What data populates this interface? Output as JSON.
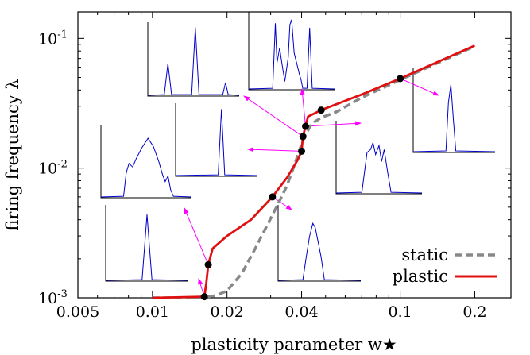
{
  "chart_data": {
    "type": "line",
    "xlabel": "plasticity parameter w★",
    "ylabel": "firing frequency λ",
    "xscale": "log",
    "yscale": "log",
    "xlim": [
      0.005,
      0.28
    ],
    "ylim": [
      0.001,
      0.16
    ],
    "x_ticks": [
      {
        "value": 0.005,
        "label": "0.005"
      },
      {
        "value": 0.01,
        "label": "0.01"
      },
      {
        "value": 0.02,
        "label": "0.02"
      },
      {
        "value": 0.04,
        "label": "0.04"
      },
      {
        "value": 0.1,
        "label": "0.1"
      },
      {
        "value": 0.2,
        "label": "0.2"
      }
    ],
    "y_ticks": [
      {
        "value": 0.001,
        "base": "10",
        "exp": "-3"
      },
      {
        "value": 0.01,
        "base": "10",
        "exp": "-2"
      },
      {
        "value": 0.1,
        "base": "10",
        "exp": "-1"
      }
    ],
    "grid": false,
    "legend_position": "bottom-right",
    "series": [
      {
        "name": "static",
        "color": "#888888",
        "style": "dashed",
        "x": [
          0.01,
          0.013,
          0.016,
          0.018,
          0.02,
          0.023,
          0.026,
          0.029,
          0.032,
          0.035,
          0.038,
          0.041,
          0.044,
          0.048,
          0.055,
          0.07,
          0.1,
          0.2
        ],
        "y": [
          0.001,
          0.001,
          0.00101,
          0.00104,
          0.00113,
          0.00155,
          0.0024,
          0.0036,
          0.0052,
          0.0074,
          0.0115,
          0.0175,
          0.022,
          0.0245,
          0.027,
          0.035,
          0.048,
          0.087
        ]
      },
      {
        "name": "plastic",
        "color": "#e01010",
        "style": "solid",
        "x": [
          0.01,
          0.0162,
          0.0165,
          0.0168,
          0.0175,
          0.02,
          0.025,
          0.0305,
          0.035,
          0.0385,
          0.04,
          0.0405,
          0.0415,
          0.0425,
          0.048,
          0.07,
          0.1,
          0.2
        ],
        "y": [
          0.001,
          0.00102,
          0.0013,
          0.0018,
          0.0024,
          0.003,
          0.004,
          0.006,
          0.0085,
          0.0115,
          0.0135,
          0.0175,
          0.021,
          0.025,
          0.028,
          0.037,
          0.049,
          0.088
        ]
      }
    ],
    "markers": [
      {
        "x": 0.0162,
        "y": 0.00102
      },
      {
        "x": 0.0168,
        "y": 0.0018
      },
      {
        "x": 0.0305,
        "y": 0.006
      },
      {
        "x": 0.04,
        "y": 0.0135
      },
      {
        "x": 0.0405,
        "y": 0.0175
      },
      {
        "x": 0.0415,
        "y": 0.021
      },
      {
        "x": 0.048,
        "y": 0.028
      },
      {
        "x": 0.1,
        "y": 0.049
      }
    ],
    "insets": [
      {
        "id": "a",
        "shape": [
          [
            0,
            0
          ],
          [
            0.18,
            0.01
          ],
          [
            0.22,
            0.45
          ],
          [
            0.26,
            0.01
          ],
          [
            0.48,
            0.01
          ],
          [
            0.52,
            0.96
          ],
          [
            0.56,
            0.01
          ],
          [
            0.82,
            0.01
          ],
          [
            0.85,
            0.18
          ],
          [
            0.88,
            0.01
          ],
          [
            1,
            0
          ]
        ]
      },
      {
        "id": "b",
        "shape": [
          [
            0,
            0
          ],
          [
            0.28,
            0.01
          ],
          [
            0.31,
            0.88
          ],
          [
            0.33,
            0.35
          ],
          [
            0.36,
            0.55
          ],
          [
            0.39,
            0.32
          ],
          [
            0.42,
            0.1
          ],
          [
            0.46,
            0.42
          ],
          [
            0.48,
            0.86
          ],
          [
            0.5,
            0.93
          ],
          [
            0.53,
            0.48
          ],
          [
            0.56,
            0.34
          ],
          [
            0.59,
            0.2
          ],
          [
            0.61,
            0.12
          ],
          [
            0.63,
            0.01
          ],
          [
            0.68,
            0.01
          ],
          [
            0.71,
            0.82
          ],
          [
            0.74,
            0.01
          ],
          [
            1,
            0
          ]
        ]
      },
      {
        "id": "c",
        "shape": [
          [
            0,
            0
          ],
          [
            0.52,
            0.01
          ],
          [
            0.56,
            0.95
          ],
          [
            0.6,
            0.01
          ],
          [
            1,
            0
          ]
        ]
      },
      {
        "id": "d",
        "shape": [
          [
            0,
            0
          ],
          [
            0.25,
            0.01
          ],
          [
            0.28,
            0.35
          ],
          [
            0.31,
            0.48
          ],
          [
            0.35,
            0.43
          ],
          [
            0.39,
            0.55
          ],
          [
            0.45,
            0.7
          ],
          [
            0.52,
            0.84
          ],
          [
            0.58,
            0.72
          ],
          [
            0.64,
            0.5
          ],
          [
            0.68,
            0.32
          ],
          [
            0.71,
            0.22
          ],
          [
            0.74,
            0.3
          ],
          [
            0.77,
            0.1
          ],
          [
            0.8,
            0.01
          ],
          [
            1,
            0
          ]
        ]
      },
      {
        "id": "e",
        "shape": [
          [
            0,
            0
          ],
          [
            0.44,
            0.01
          ],
          [
            0.5,
            0.9
          ],
          [
            0.56,
            0.01
          ],
          [
            1,
            0
          ]
        ]
      },
      {
        "id": "f",
        "shape": [
          [
            0,
            0
          ],
          [
            0.3,
            0.01
          ],
          [
            0.36,
            0.58
          ],
          [
            0.4,
            0.62
          ],
          [
            0.43,
            0.72
          ],
          [
            0.46,
            0.55
          ],
          [
            0.5,
            0.68
          ],
          [
            0.53,
            0.45
          ],
          [
            0.56,
            0.62
          ],
          [
            0.6,
            0.3
          ],
          [
            0.64,
            0.01
          ],
          [
            1,
            0
          ]
        ]
      },
      {
        "id": "g",
        "shape": [
          [
            0,
            0
          ],
          [
            0.3,
            0.01
          ],
          [
            0.34,
            0.32
          ],
          [
            0.38,
            0.6
          ],
          [
            0.42,
            0.78
          ],
          [
            0.45,
            0.72
          ],
          [
            0.48,
            0.55
          ],
          [
            0.52,
            0.32
          ],
          [
            0.56,
            0.01
          ],
          [
            1,
            0
          ]
        ]
      },
      {
        "id": "h",
        "shape": [
          [
            0,
            0
          ],
          [
            0.4,
            0.01
          ],
          [
            0.43,
            0.6
          ],
          [
            0.46,
            0.82
          ],
          [
            0.49,
            0.4
          ],
          [
            0.52,
            0.01
          ],
          [
            1,
            0
          ]
        ]
      }
    ]
  },
  "legend": {
    "static_label": "static",
    "plastic_label": "plastic"
  },
  "colors": {
    "axis": "#000000",
    "inset_line": "#0000cc",
    "arrow": "#ff00ff",
    "marker": "#000000"
  }
}
